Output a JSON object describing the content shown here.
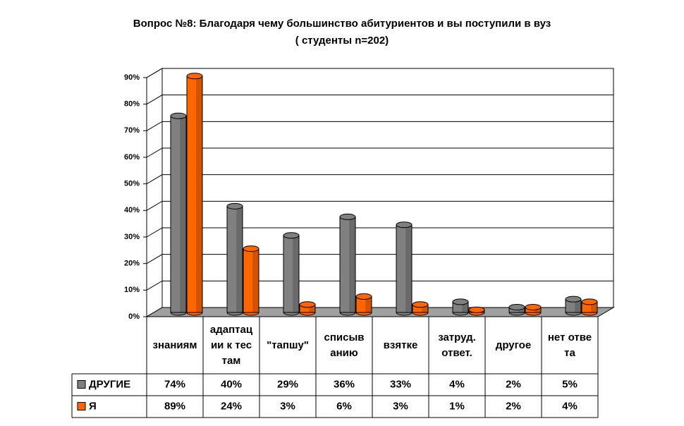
{
  "chart_data": {
    "type": "bar",
    "title": "Вопрос №8: Благодаря чему большинство абитуриентов и вы поступили в вуз",
    "subtitle": "( студенты n=202)",
    "categories": [
      "знаниям",
      "адаптации к тестам",
      "\"тапшу\"",
      "списыванию",
      "взятке",
      "затруд. ответ.",
      "другое",
      "нет ответа"
    ],
    "series": [
      {
        "name": "ДРУГИЕ",
        "color": "#808080",
        "values": [
          74,
          40,
          29,
          36,
          33,
          4,
          2,
          5
        ],
        "value_labels": [
          "74%",
          "40%",
          "29%",
          "36%",
          "33%",
          "4%",
          "2%",
          "5%"
        ]
      },
      {
        "name": "Я",
        "color": "#ff6600",
        "values": [
          89,
          24,
          3,
          6,
          3,
          1,
          2,
          4
        ],
        "value_labels": [
          "89%",
          "24%",
          "3%",
          "6%",
          "3%",
          "1%",
          "2%",
          "4%"
        ]
      }
    ],
    "ylim": [
      0,
      90
    ],
    "yticks": [
      {
        "value": 0,
        "label": "0%"
      },
      {
        "value": 10,
        "label": "10%"
      },
      {
        "value": 20,
        "label": "20%"
      },
      {
        "value": 30,
        "label": "30%"
      },
      {
        "value": 40,
        "label": "40%"
      },
      {
        "value": 50,
        "label": "50%"
      },
      {
        "value": 60,
        "label": "60%"
      },
      {
        "value": 70,
        "label": "70%"
      },
      {
        "value": 80,
        "label": "80%"
      },
      {
        "value": 90,
        "label": "90%"
      }
    ],
    "grid": true
  }
}
